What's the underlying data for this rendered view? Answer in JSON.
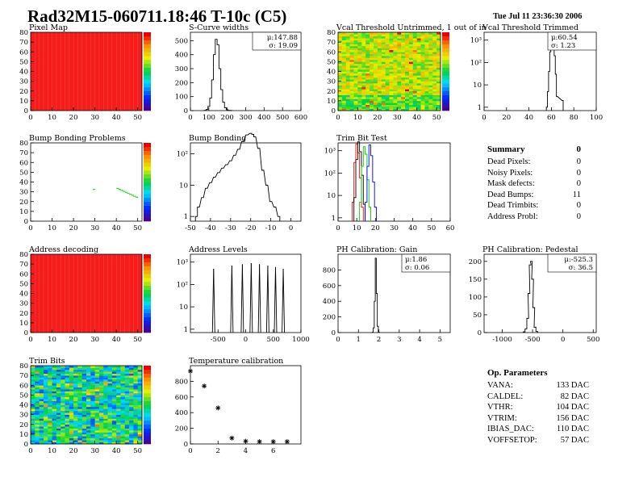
{
  "header": {
    "title": "Rad32M15-060711.18:46 T-10c (C5)",
    "date": "Tue Jul 11 23:36:30 2006"
  },
  "summary": {
    "title": "Summary",
    "total": "0",
    "items": [
      {
        "label": "Dead Pixels:",
        "value": "0"
      },
      {
        "label": "Noisy Pixels:",
        "value": "0"
      },
      {
        "label": "Mask defects:",
        "value": "0"
      },
      {
        "label": "Dead Bumps:",
        "value": "11"
      },
      {
        "label": "Dead Trimbits:",
        "value": "0"
      },
      {
        "label": "Address Probl:",
        "value": "0"
      }
    ]
  },
  "op_parameters": {
    "title": "Op. Parameters",
    "items": [
      {
        "label": "VANA:",
        "value": "133 DAC"
      },
      {
        "label": "CALDEL:",
        "value": "82 DAC"
      },
      {
        "label": "VTHR:",
        "value": "104 DAC"
      },
      {
        "label": "VTRIM:",
        "value": "156 DAC"
      },
      {
        "label": "IBIAS_DAC:",
        "value": "110 DAC"
      },
      {
        "label": "VOFFSETOP:",
        "value": "57 DAC"
      }
    ]
  },
  "chart_data": [
    {
      "id": "pixel-map",
      "type": "heatmap",
      "title": "Pixel Map",
      "xlim": [
        0,
        52
      ],
      "ylim": [
        0,
        80
      ],
      "xticks": [
        0,
        10,
        20,
        30,
        40,
        50
      ],
      "yticks": [
        0,
        10,
        20,
        30,
        40,
        50,
        60,
        70,
        80
      ],
      "fill": "uniform-red",
      "palette": "rainbow"
    },
    {
      "id": "s-curve-widths",
      "type": "histogram",
      "title": "S-Curve widths",
      "xlim": [
        0,
        600
      ],
      "ylim": [
        0,
        560
      ],
      "xticks": [
        0,
        100,
        200,
        300,
        400,
        500,
        600
      ],
      "yticks": [
        0,
        100,
        200,
        300,
        400,
        500
      ],
      "stats": [
        "μ:147.88",
        "σ: 19.09"
      ],
      "x": [
        80,
        90,
        100,
        110,
        120,
        130,
        140,
        150,
        160,
        170,
        180,
        190,
        200,
        210,
        220
      ],
      "values": [
        2,
        8,
        30,
        90,
        220,
        400,
        510,
        470,
        300,
        150,
        60,
        20,
        6,
        2,
        1
      ]
    },
    {
      "id": "vcal-untrimmed",
      "type": "heatmap",
      "title": "Vcal Threshold Untrimmed, 1 out of in",
      "xlim": [
        0,
        52
      ],
      "ylim": [
        0,
        80
      ],
      "xticks": [
        0,
        10,
        20,
        30,
        40,
        50
      ],
      "yticks": [
        0,
        10,
        20,
        30,
        40,
        50,
        60,
        70,
        80
      ],
      "fill": "noisy-yellow-green",
      "palette": "rainbow"
    },
    {
      "id": "vcal-trimmed",
      "type": "histogram",
      "title": "Vcal Threshold Trimmed",
      "xlim": [
        0,
        100
      ],
      "log": true,
      "ydecades": [
        1,
        10,
        100,
        1000
      ],
      "xticks": [
        0,
        20,
        40,
        60,
        80,
        100
      ],
      "yticklabels": [
        "1",
        "10",
        "10²",
        "10³"
      ],
      "stats": [
        "μ:60.54",
        "σ: 1.23"
      ],
      "x": [
        56,
        57,
        58,
        59,
        60,
        61,
        62,
        63,
        64,
        65,
        70
      ],
      "values": [
        1,
        5,
        40,
        300,
        900,
        1000,
        600,
        200,
        30,
        3,
        2
      ]
    },
    {
      "id": "bump-bonding-problems",
      "type": "heatmap",
      "title": "Bump Bonding Problems",
      "xlim": [
        0,
        52
      ],
      "ylim": [
        0,
        80
      ],
      "xticks": [
        0,
        10,
        20,
        30,
        40,
        50
      ],
      "yticks": [
        0,
        10,
        20,
        30,
        40,
        50,
        60,
        70,
        80
      ],
      "fill": "empty-with-dead-bumps",
      "palette": "rainbow",
      "dead_bumps": [
        [
          29,
          32
        ],
        [
          40,
          33
        ],
        [
          41,
          32
        ],
        [
          42,
          31
        ],
        [
          43,
          30
        ],
        [
          44,
          29
        ],
        [
          45,
          28
        ],
        [
          46,
          27
        ],
        [
          47,
          26
        ],
        [
          48,
          25
        ],
        [
          49,
          24
        ]
      ]
    },
    {
      "id": "bump-bonding",
      "type": "histogram",
      "title": "Bump Bonding",
      "xlim": [
        -50,
        5
      ],
      "log": true,
      "ydecades": [
        1,
        10,
        100
      ],
      "xticks": [
        -50,
        -40,
        -30,
        -20,
        -10,
        0
      ],
      "yticklabels": [
        "1",
        "10",
        "10²"
      ],
      "x": [
        -47,
        -46,
        -44,
        -42,
        -40,
        -38,
        -36,
        -34,
        -32,
        -30,
        -28,
        -26,
        -24,
        -22,
        -20,
        -19,
        -18,
        -16,
        -14,
        -12,
        -10,
        -8,
        -6
      ],
      "values": [
        1,
        2,
        4,
        8,
        12,
        18,
        25,
        35,
        45,
        60,
        90,
        140,
        250,
        400,
        450,
        420,
        350,
        150,
        30,
        10,
        3,
        2,
        1
      ]
    },
    {
      "id": "trim-bit-test",
      "type": "line",
      "title": "Trim Bit Test",
      "xlim": [
        0,
        60
      ],
      "log": true,
      "ydecades": [
        1,
        10,
        100,
        1000
      ],
      "xticks": [
        0,
        10,
        20,
        30,
        40,
        50,
        60
      ],
      "yticklabels": [
        "1",
        "10",
        "10²",
        "10³"
      ],
      "series": [
        {
          "color": "#ff0000",
          "x": [
            8,
            9,
            10,
            11,
            12,
            13
          ],
          "values": [
            5,
            300,
            2000,
            800,
            60,
            3
          ]
        },
        {
          "color": "#000000",
          "x": [
            9,
            10,
            11,
            12,
            13,
            14
          ],
          "values": [
            8,
            400,
            2500,
            900,
            80,
            4
          ]
        },
        {
          "color": "#00cc00",
          "x": [
            12,
            13,
            14,
            15,
            16,
            17
          ],
          "values": [
            5,
            200,
            1500,
            700,
            50,
            3
          ]
        },
        {
          "color": "#0000ff",
          "x": [
            15,
            16,
            17,
            18,
            19,
            20
          ],
          "values": [
            5,
            200,
            1800,
            600,
            40,
            3
          ]
        }
      ]
    },
    {
      "id": "address-decoding",
      "type": "heatmap",
      "title": "Address decoding",
      "xlim": [
        0,
        52
      ],
      "ylim": [
        0,
        80
      ],
      "xticks": [
        0,
        10,
        20,
        30,
        40,
        50
      ],
      "yticks": [
        0,
        10,
        20,
        30,
        40,
        50,
        60,
        70,
        80
      ],
      "fill": "uniform-red",
      "palette": "rainbow"
    },
    {
      "id": "address-levels",
      "type": "histogram",
      "title": "Address Levels",
      "xlim": [
        -1000,
        1000
      ],
      "log": true,
      "ydecades": [
        1,
        10,
        100,
        1000
      ],
      "xticks": [
        -500,
        0,
        500,
        1000
      ],
      "yticklabels": [
        "1",
        "10",
        "10²",
        "10³"
      ],
      "x": [
        -580,
        -250,
        -60,
        100,
        250,
        400,
        540,
        680
      ],
      "values": [
        500,
        700,
        800,
        900,
        800,
        700,
        600,
        500
      ]
    },
    {
      "id": "ph-gain",
      "type": "histogram",
      "title": "PH Calibration: Gain",
      "xlim": [
        0,
        5.5
      ],
      "ylim": [
        0,
        1000
      ],
      "xticks": [
        0,
        1,
        2,
        3,
        4,
        5
      ],
      "yticks": [
        0,
        200,
        400,
        600,
        800
      ],
      "stats": [
        "μ:1.86",
        "σ: 0.06"
      ],
      "x": [
        1.7,
        1.75,
        1.8,
        1.85,
        1.9,
        1.95,
        2.0
      ],
      "values": [
        5,
        60,
        400,
        950,
        500,
        80,
        5
      ]
    },
    {
      "id": "ph-pedestal",
      "type": "histogram",
      "title": "PH Calibration: Pedestal",
      "xlim": [
        -1300,
        550
      ],
      "ylim": [
        0,
        220
      ],
      "xticks": [
        -1000,
        -500,
        0,
        500
      ],
      "yticks": [
        0,
        50,
        100,
        150,
        200
      ],
      "stats": [
        "μ:-525.3",
        "σ: 36.5"
      ],
      "x": [
        -640,
        -610,
        -580,
        -560,
        -540,
        -520,
        -500,
        -480,
        -460,
        -430
      ],
      "values": [
        2,
        10,
        40,
        110,
        190,
        200,
        150,
        70,
        15,
        3
      ]
    },
    {
      "id": "trim-bits",
      "type": "heatmap",
      "title": "Trim Bits",
      "xlim": [
        0,
        52
      ],
      "ylim": [
        0,
        80
      ],
      "xticks": [
        0,
        10,
        20,
        30,
        40,
        50
      ],
      "yticks": [
        0,
        10,
        20,
        30,
        40,
        50,
        60,
        70,
        80
      ],
      "fill": "noisy-green-cyan",
      "palette": "rainbow"
    },
    {
      "id": "temperature-calibration",
      "type": "scatter",
      "title": "Temperature calibration",
      "xlim": [
        0,
        8
      ],
      "ylim": [
        0,
        1000
      ],
      "xticks": [
        0,
        2,
        4,
        6
      ],
      "yticks": [
        0,
        200,
        400,
        600,
        800
      ],
      "x": [
        0,
        1,
        2,
        3,
        4,
        5,
        6,
        7
      ],
      "values": [
        930,
        740,
        460,
        75,
        35,
        30,
        30,
        30
      ]
    }
  ]
}
